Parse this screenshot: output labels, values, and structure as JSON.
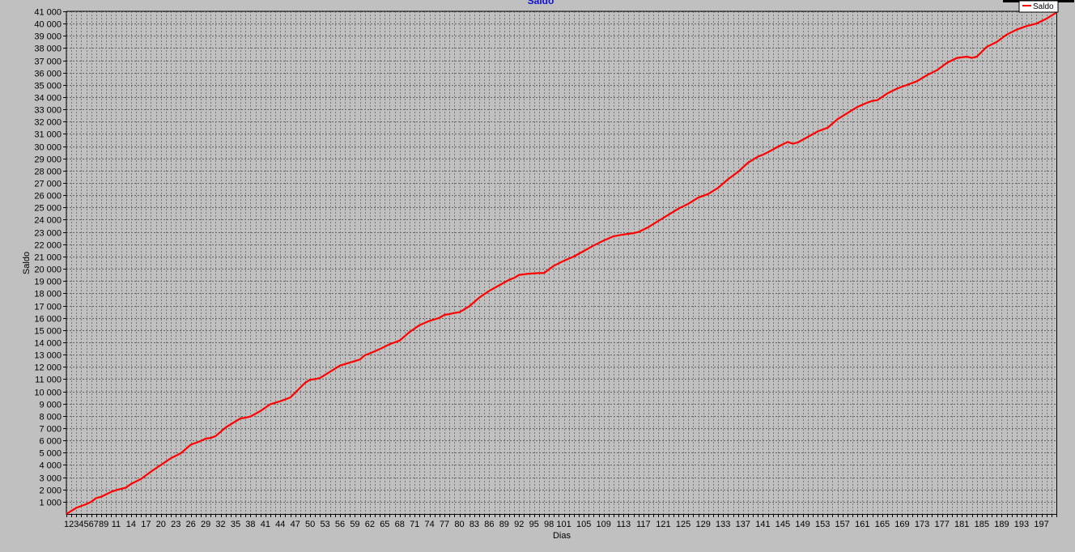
{
  "chart_data": {
    "type": "line",
    "title": "Saldo",
    "xlabel": "Dias",
    "ylabel": "Saldo",
    "xlim": [
      1,
      200
    ],
    "ylim": [
      0,
      41000
    ],
    "y_ticks": [
      1000,
      2000,
      3000,
      4000,
      5000,
      6000,
      7000,
      8000,
      9000,
      10000,
      11000,
      12000,
      13000,
      14000,
      15000,
      16000,
      17000,
      18000,
      19000,
      20000,
      21000,
      22000,
      23000,
      24000,
      25000,
      26000,
      27000,
      28000,
      29000,
      30000,
      31000,
      32000,
      33000,
      34000,
      35000,
      36000,
      37000,
      38000,
      39000,
      40000,
      41000
    ],
    "y_tick_labels": [
      "1 000",
      "2 000",
      "3 000",
      "4 000",
      "5 000",
      "6 000",
      "7 000",
      "8 000",
      "9 000",
      "10 000",
      "11 000",
      "12 000",
      "13 000",
      "14 000",
      "15 000",
      "16 000",
      "17 000",
      "18 000",
      "19 000",
      "20 000",
      "21 000",
      "22 000",
      "23 000",
      "24 000",
      "25 000",
      "26 000",
      "27 000",
      "28 000",
      "29 000",
      "30 000",
      "31 000",
      "32 000",
      "33 000",
      "34 000",
      "35 000",
      "36 000",
      "37 000",
      "38 000",
      "39 000",
      "40 000",
      "41 000"
    ],
    "x_ticks": [
      1,
      2,
      3,
      4,
      5,
      6,
      7,
      8,
      9,
      11,
      14,
      17,
      20,
      23,
      26,
      29,
      32,
      35,
      38,
      41,
      44,
      47,
      50,
      53,
      56,
      59,
      62,
      65,
      68,
      71,
      74,
      77,
      80,
      83,
      86,
      89,
      92,
      95,
      98,
      101,
      105,
      109,
      113,
      117,
      121,
      125,
      129,
      133,
      137,
      141,
      145,
      149,
      153,
      157,
      161,
      165,
      169,
      173,
      177,
      181,
      185,
      189,
      193,
      197
    ],
    "x_tick_labels": [
      "1",
      "2",
      "3",
      "4",
      "5",
      "6",
      "7",
      "8",
      "9",
      "11",
      "14",
      "17",
      "20",
      "23",
      "26",
      "29",
      "32",
      "35",
      "38",
      "41",
      "44",
      "47",
      "50",
      "53",
      "56",
      "59",
      "62",
      "65",
      "68",
      "71",
      "74",
      "77",
      "80",
      "83",
      "86",
      "89",
      "92",
      "95",
      "98",
      "101",
      "105",
      "109",
      "113",
      "117",
      "121",
      "125",
      "129",
      "133",
      "137",
      "141",
      "145",
      "149",
      "153",
      "157",
      "161",
      "165",
      "169",
      "173",
      "177",
      "181",
      "185",
      "189",
      "193",
      "197"
    ],
    "grid": true,
    "legend_position": "top-right",
    "series": [
      {
        "name": "Saldo",
        "color": "#ff0000",
        "x": [
          1,
          3,
          5,
          6,
          7,
          8,
          9,
          10,
          11,
          12,
          13,
          14,
          16,
          18,
          20,
          22,
          24,
          26,
          27,
          28,
          29,
          30,
          31,
          33,
          35,
          36,
          37,
          38,
          40,
          42,
          44,
          46,
          47,
          49,
          50,
          51,
          52,
          54,
          56,
          58,
          60,
          61,
          62,
          64,
          66,
          67,
          68,
          70,
          72,
          74,
          76,
          77,
          78,
          79,
          80,
          82,
          84,
          86,
          88,
          90,
          91,
          92,
          94,
          96,
          97,
          99,
          101,
          103,
          105,
          107,
          109,
          111,
          113,
          114,
          115,
          116,
          118,
          120,
          122,
          124,
          125,
          126,
          128,
          130,
          132,
          134,
          136,
          138,
          140,
          141,
          142,
          144,
          146,
          147,
          148,
          150,
          152,
          154,
          156,
          158,
          160,
          162,
          163,
          164,
          166,
          168,
          170,
          172,
          174,
          176,
          178,
          180,
          182,
          183,
          184,
          186,
          188,
          190,
          192,
          194,
          195,
          196,
          198,
          200
        ],
        "y": [
          0,
          500,
          800,
          1000,
          1300,
          1400,
          1600,
          1800,
          1950,
          2050,
          2150,
          2450,
          2850,
          3450,
          4000,
          4550,
          4950,
          5650,
          5800,
          5950,
          6150,
          6200,
          6350,
          7050,
          7550,
          7800,
          7850,
          7950,
          8400,
          8950,
          9200,
          9500,
          9900,
          10700,
          10950,
          11000,
          11100,
          11600,
          12100,
          12350,
          12600,
          12950,
          13100,
          13450,
          13850,
          14000,
          14150,
          14850,
          15400,
          15750,
          16000,
          16250,
          16300,
          16400,
          16450,
          16950,
          17650,
          18200,
          18650,
          19100,
          19250,
          19500,
          19600,
          19650,
          19650,
          20250,
          20650,
          21000,
          21450,
          21900,
          22300,
          22650,
          22800,
          22850,
          22900,
          23000,
          23400,
          23900,
          24400,
          24900,
          25100,
          25300,
          25800,
          26100,
          26600,
          27300,
          27900,
          28650,
          29150,
          29300,
          29500,
          29950,
          30350,
          30200,
          30300,
          30750,
          31200,
          31500,
          32200,
          32700,
          33200,
          33550,
          33700,
          33750,
          34300,
          34700,
          35000,
          35300,
          35800,
          36200,
          36800,
          37200,
          37300,
          37200,
          37300,
          38100,
          38500,
          39100,
          39500,
          39800,
          39900,
          40000,
          40400,
          40900
        ]
      }
    ]
  }
}
